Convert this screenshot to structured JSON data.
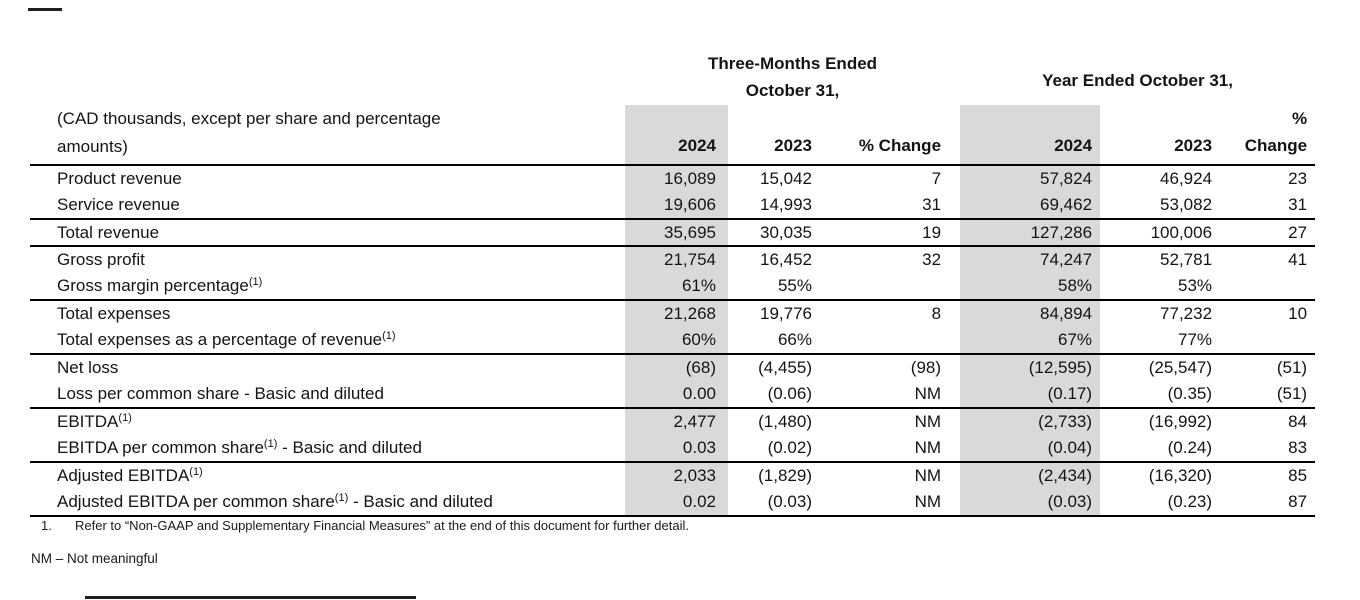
{
  "theme": {
    "shade_hex": "#d9d9d9",
    "text_hex": "#141414",
    "rule_hex": "#000000"
  },
  "table": {
    "period_headers": [
      {
        "line1": "Three-Months Ended",
        "line2": "October 31,"
      },
      {
        "line1": "Year Ended October 31,"
      }
    ],
    "caption_line1": "(CAD thousands, except per share and percentage",
    "caption_line2": "amounts)",
    "columns": [
      "2024",
      "2023",
      "% Change",
      "2024",
      "2023",
      "% Change"
    ],
    "pct_change_stacked": {
      "line1": "%",
      "line2": "Change"
    },
    "rows": [
      {
        "label": "Product revenue",
        "values": [
          "16,089",
          "15,042",
          "7",
          "57,824",
          "46,924",
          "23"
        ]
      },
      {
        "label": "Service revenue",
        "values": [
          "19,606",
          "14,993",
          "31",
          "69,462",
          "53,082",
          "31"
        ],
        "group_end": true
      },
      {
        "label": "Total revenue",
        "values": [
          "35,695",
          "30,035",
          "19",
          "127,286",
          "100,006",
          "27"
        ],
        "group_end": true
      },
      {
        "label": "Gross profit",
        "values": [
          "21,754",
          "16,452",
          "32",
          "74,247",
          "52,781",
          "41"
        ]
      },
      {
        "label": "Gross margin percentage",
        "sup": "(1)",
        "values": [
          "61%",
          "55%",
          "",
          "58%",
          "53%",
          ""
        ],
        "group_end": true
      },
      {
        "label": "Total expenses",
        "values": [
          "21,268",
          "19,776",
          "8",
          "84,894",
          "77,232",
          "10"
        ]
      },
      {
        "label": "Total expenses as a percentage of revenue",
        "sup": "(1)",
        "values": [
          "60%",
          "66%",
          "",
          "67%",
          "77%",
          ""
        ],
        "group_end": true
      },
      {
        "label": "Net loss",
        "values": [
          "(68)",
          "(4,455)",
          "(98)",
          "(12,595)",
          "(25,547)",
          "(51)"
        ]
      },
      {
        "label": "Loss per common share - Basic and diluted",
        "values": [
          "0.00",
          "(0.06)",
          "NM",
          "(0.17)",
          "(0.35)",
          "(51)"
        ],
        "group_end": true
      },
      {
        "label": "EBITDA",
        "sup": "(1)",
        "values": [
          "2,477",
          "(1,480)",
          "NM",
          "(2,733)",
          "(16,992)",
          "84"
        ]
      },
      {
        "label": "EBITDA per common share",
        "sup": "(1)",
        "suffix": " - Basic and diluted",
        "values": [
          "0.03",
          "(0.02)",
          "NM",
          "(0.04)",
          "(0.24)",
          "83"
        ],
        "group_end": true
      },
      {
        "label": "Adjusted EBITDA",
        "sup": "(1)",
        "values": [
          "2,033",
          "(1,829)",
          "NM",
          "(2,434)",
          "(16,320)",
          "85"
        ]
      },
      {
        "label": "Adjusted EBITDA per common share",
        "sup": "(1)",
        "suffix": " - Basic and diluted",
        "values": [
          "0.02",
          "(0.03)",
          "NM",
          "(0.03)",
          "(0.23)",
          "87"
        ],
        "group_end": true,
        "last": true
      }
    ]
  },
  "footnotes": {
    "note1_number": "1.",
    "note1_text": "Refer to “Non-GAAP and Supplementary Financial Measures” at the end of this document for further detail.",
    "nm_note": "NM – Not meaningful"
  }
}
